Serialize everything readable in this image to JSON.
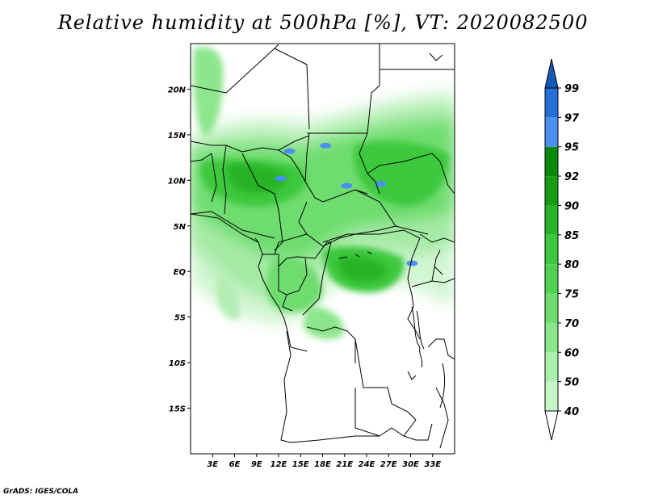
{
  "title": "Relative humidity at 500hPa [%], VT: 2020082500",
  "footer": "GrADS: IGES/COLA",
  "map": {
    "lon_range": [
      0,
      36
    ],
    "lat_range": [
      -20,
      25
    ],
    "lon_ticks": [
      "3E",
      "6E",
      "9E",
      "12E",
      "15E",
      "18E",
      "21E",
      "24E",
      "27E",
      "30E",
      "33E"
    ],
    "lat_ticks": [
      "20N",
      "15N",
      "10N",
      "5N",
      "EQ",
      "5S",
      "10S",
      "15S"
    ],
    "lon_values": [
      3,
      6,
      9,
      12,
      15,
      18,
      21,
      24,
      27,
      30,
      33
    ],
    "lat_values": [
      20,
      15,
      10,
      5,
      0,
      -5,
      -10,
      -15
    ]
  },
  "colorbar": {
    "levels": [
      "40",
      "50",
      "60",
      "70",
      "75",
      "80",
      "85",
      "90",
      "92",
      "95",
      "97",
      "99"
    ],
    "colors": [
      "#e6fae6",
      "#c8f5c8",
      "#aaf0aa",
      "#8ce68c",
      "#6edc6e",
      "#50d250",
      "#3cc83c",
      "#28b428",
      "#189c18",
      "#0a8a0a",
      "#4a90f0",
      "#2470d8",
      "#1458b8"
    ]
  },
  "humidity_fields": [
    {
      "level": 80,
      "lon": [
        0,
        11
      ],
      "lat": [
        4,
        13
      ]
    },
    {
      "level": 85,
      "lon": [
        8,
        20
      ],
      "lat": [
        2,
        10
      ]
    },
    {
      "level": 90,
      "lon": [
        10,
        18
      ],
      "lat": [
        7,
        12
      ]
    },
    {
      "level": 85,
      "lon": [
        18,
        27
      ],
      "lat": [
        -4,
        4
      ]
    },
    {
      "level": 90,
      "lon": [
        20,
        25
      ],
      "lat": [
        -2,
        2
      ]
    },
    {
      "level": 80,
      "lon": [
        22,
        36
      ],
      "lat": [
        7,
        15
      ]
    },
    {
      "level": 85,
      "lon": [
        26,
        32
      ],
      "lat": [
        8,
        12
      ]
    },
    {
      "level": 75,
      "lon": [
        12,
        22
      ],
      "lat": [
        12,
        16
      ]
    },
    {
      "level": 70,
      "lon": [
        4,
        18
      ],
      "lat": [
        -7,
        -1
      ]
    },
    {
      "level": 75,
      "lon": [
        1,
        4
      ],
      "lat": [
        19,
        24
      ]
    }
  ],
  "moist_spots": [
    {
      "lon": 13.5,
      "lat": 13.2
    },
    {
      "lon": 18.4,
      "lat": 13.8
    },
    {
      "lon": 12.3,
      "lat": 10.2
    },
    {
      "lon": 21.3,
      "lat": 9.4
    },
    {
      "lon": 25.9,
      "lat": 9.6
    },
    {
      "lon": 30.2,
      "lat": 0.9
    }
  ]
}
